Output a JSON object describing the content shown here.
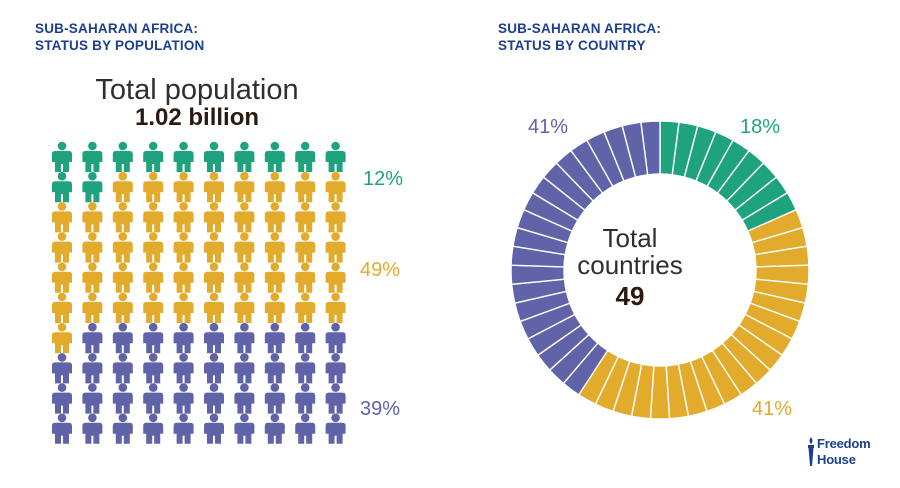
{
  "colors": {
    "free": "#1fa37f",
    "partly_free": "#e3ab2b",
    "not_free": "#6063a8",
    "title": "#1c3f8e",
    "divider": "#ffffff"
  },
  "left_panel": {
    "title_line1": "SUB-SAHARAN AFRICA:",
    "title_line2": "STATUS BY POPULATION",
    "total_label": "Total population",
    "total_value": "1.02 billion"
  },
  "right_panel": {
    "title_line1": "SUB-SAHARAN AFRICA:",
    "title_line2": "STATUS BY COUNTRY",
    "center_label_line1": "Total",
    "center_label_line2": "countries",
    "center_value": "49"
  },
  "logo": {
    "line1": "Freedom",
    "line2": "House",
    "icon": "torch-icon"
  },
  "chart_data": [
    {
      "type": "pictogram",
      "rows": 10,
      "columns": 10,
      "series": [
        {
          "name": "",
          "value": 12,
          "label": "12%",
          "color": "#1fa37f"
        },
        {
          "name": "",
          "value": 49,
          "label": "49%",
          "color": "#e3ab2b"
        },
        {
          "name": "",
          "value": 39,
          "label": "39%",
          "color": "#6063a8"
        }
      ]
    },
    {
      "type": "pie",
      "segments": 49,
      "series": [
        {
          "name": "",
          "value": 18,
          "count": 9,
          "label": "18%",
          "color": "#1fa37f"
        },
        {
          "name": "",
          "value": 41,
          "count": 20,
          "label": "41%",
          "color": "#e3ab2b"
        },
        {
          "name": "",
          "value": 41,
          "count": 20,
          "label": "41%",
          "color": "#6063a8"
        }
      ]
    }
  ]
}
